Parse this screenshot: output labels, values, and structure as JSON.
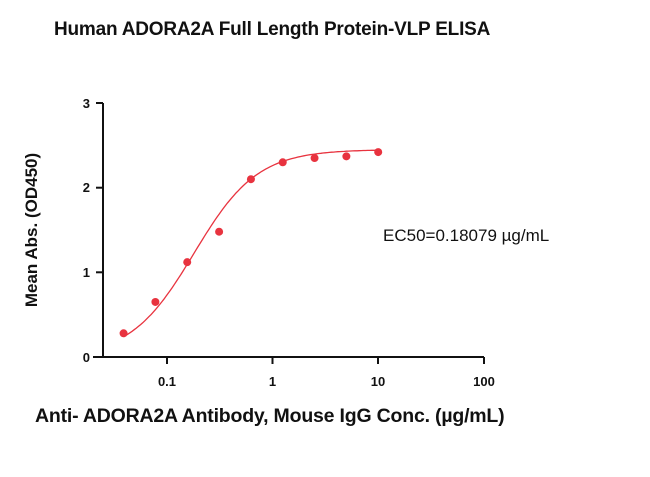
{
  "chart_data": {
    "type": "scatter",
    "title": "Human ADORA2A Full Length Protein-VLP ELISA",
    "xlabel": "Anti- ADORA2A Antibody, Mouse IgG Conc. (µg/mL)",
    "ylabel": "Mean Abs. (OD450)",
    "xscale": "log",
    "xlim": [
      0.025,
      100
    ],
    "ylim": [
      0,
      3
    ],
    "xticks": [
      0.1,
      1,
      10,
      100
    ],
    "xtick_labels": [
      "0.1",
      "1",
      "10",
      "100"
    ],
    "yticks": [
      0,
      1,
      2,
      3
    ],
    "ytick_labels": [
      "0",
      "1",
      "2",
      "3"
    ],
    "grid": false,
    "legend": null,
    "series": [
      {
        "name": "Mean Abs. (OD450)",
        "color": "#E8333F",
        "marker": "circle",
        "fit": "4PL sigmoidal curve",
        "x": [
          0.039,
          0.078,
          0.156,
          0.3125,
          0.625,
          1.25,
          2.5,
          5,
          10
        ],
        "values": [
          0.28,
          0.65,
          1.12,
          1.48,
          2.1,
          2.3,
          2.35,
          2.37,
          2.42
        ]
      }
    ],
    "annotations": [
      {
        "text": "EC50=0.18079 µg/mL",
        "position": "right-middle"
      }
    ]
  },
  "labels": {
    "title": "Human ADORA2A Full Length Protein-VLP ELISA",
    "xlabel": "Anti- ADORA2A Antibody, Mouse IgG Conc. (µg/mL)",
    "ylabel": "Mean Abs. (OD450)",
    "annotation": "EC50=0.18079 µg/mL",
    "yticks": [
      "0",
      "1",
      "2",
      "3"
    ],
    "xticks": [
      "0.1",
      "1",
      "10",
      "100"
    ]
  }
}
